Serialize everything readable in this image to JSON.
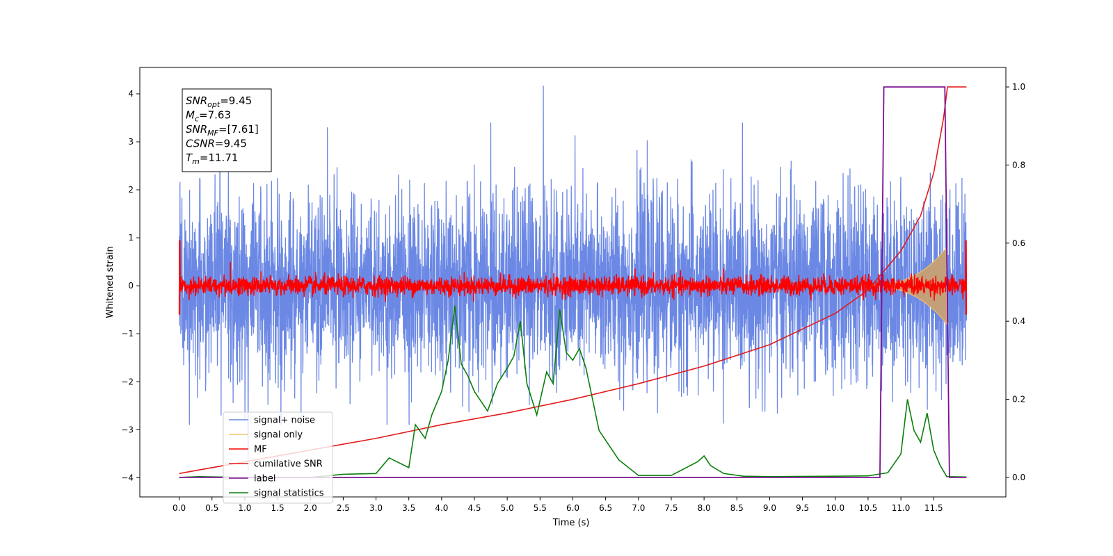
{
  "chart_data": {
    "type": "line",
    "xlabel": "Time (s)",
    "ylabel": "Whitened strain",
    "xlim": [
      -0.6,
      12.6
    ],
    "ylim": [
      -4.4,
      4.55
    ],
    "y2lim": [
      -0.05,
      1.05
    ],
    "xticks": [
      "0.0",
      "0.5",
      "1.0",
      "1.5",
      "2.0",
      "2.5",
      "3.0",
      "3.5",
      "4.0",
      "4.5",
      "5.0",
      "5.5",
      "6.0",
      "6.5",
      "7.0",
      "7.5",
      "8.0",
      "8.5",
      "9.0",
      "9.5",
      "10.0",
      "10.5",
      "11.0",
      "11.5"
    ],
    "yticks": [
      "−4",
      "−3",
      "−2",
      "−1",
      "0",
      "1",
      "2",
      "3",
      "4"
    ],
    "y2ticks": [
      "0.0",
      "0.2",
      "0.4",
      "0.6",
      "0.8",
      "1.0"
    ],
    "colors": {
      "signal_noise": "#6b88e4",
      "signal_only": "#f5c26b",
      "signal_fill": "#c4a07a",
      "mf": "#ff0000",
      "csnr": "#e41a1a",
      "label": "#7b0f8f",
      "statistics": "#0a7f0a"
    },
    "annotation": {
      "lines": [
        {
          "name": "SNR",
          "sub": "opt",
          "value": "=9.45"
        },
        {
          "name": "M",
          "sub": "c",
          "value": "=7.63"
        },
        {
          "name": "SNR",
          "sub": "MF",
          "value": "=[7.61]"
        },
        {
          "name": "CSNR",
          "sub": "",
          "value": "=9.45"
        },
        {
          "name": "T",
          "sub": "m",
          "value": "=11.71"
        }
      ]
    },
    "legend": {
      "placement": "lower-left",
      "entries": [
        {
          "label": "signal+ noise",
          "color": "#6b88e4"
        },
        {
          "label": "signal only",
          "color": "#f5c26b"
        },
        {
          "label": "MF",
          "color": "#ff0000"
        },
        {
          "label": "cumilative SNR",
          "color": "#e41a1a"
        },
        {
          "label": "label",
          "color": "#7b0f8f"
        },
        {
          "label": "signal statistics",
          "color": "#0a7f0a"
        }
      ]
    },
    "series": [
      {
        "name": "signal+ noise",
        "axis": "left",
        "t_range": [
          0,
          12
        ],
        "envelope": "random noise between about −2.4 and 2.6, spikes to 4.17 near t=5.55 and −3.85 near t=1.05"
      },
      {
        "name": "signal only",
        "axis": "left",
        "t_range": [
          10.3,
          11.7
        ],
        "chirp_peak_amplitude": 0.8
      },
      {
        "name": "MF",
        "axis": "left",
        "t_range": [
          0,
          12
        ],
        "baseline": 0,
        "noise_amplitude": 0.2
      },
      {
        "name": "cumilative SNR",
        "axis": "right",
        "x": [
          0.0,
          1.0,
          2.0,
          3.0,
          4.0,
          5.0,
          6.0,
          7.0,
          8.0,
          9.0,
          10.0,
          10.5,
          11.0,
          11.3,
          11.5,
          11.65,
          11.71,
          11.72,
          12.0
        ],
        "y": [
          0.01,
          0.04,
          0.07,
          0.1,
          0.135,
          0.165,
          0.2,
          0.24,
          0.285,
          0.34,
          0.42,
          0.48,
          0.58,
          0.67,
          0.78,
          0.92,
          1.0,
          1.0,
          1.0
        ]
      },
      {
        "name": "label",
        "axis": "right",
        "x": [
          0.0,
          10.68,
          10.74,
          11.67,
          11.74,
          12.0
        ],
        "y": [
          0.0,
          0.0,
          1.0,
          1.0,
          0.0,
          0.0
        ]
      },
      {
        "name": "signal statistics",
        "axis": "right",
        "x": [
          0.0,
          0.3,
          1.0,
          2.0,
          2.5,
          3.0,
          3.2,
          3.5,
          3.6,
          3.75,
          3.85,
          4.0,
          4.1,
          4.2,
          4.3,
          4.4,
          4.5,
          4.7,
          4.85,
          5.0,
          5.1,
          5.2,
          5.3,
          5.45,
          5.6,
          5.7,
          5.8,
          5.9,
          6.0,
          6.1,
          6.2,
          6.4,
          6.7,
          7.0,
          7.5,
          7.9,
          8.0,
          8.1,
          8.3,
          8.6,
          9.0,
          10.0,
          10.5,
          10.8,
          11.0,
          11.1,
          11.2,
          11.3,
          11.4,
          11.5,
          11.6,
          11.7,
          12.0
        ],
        "y": [
          0.0,
          0.002,
          0.0,
          0.0,
          0.008,
          0.01,
          0.05,
          0.025,
          0.135,
          0.1,
          0.16,
          0.22,
          0.3,
          0.44,
          0.29,
          0.26,
          0.22,
          0.17,
          0.24,
          0.28,
          0.31,
          0.4,
          0.24,
          0.16,
          0.27,
          0.24,
          0.43,
          0.32,
          0.3,
          0.33,
          0.28,
          0.12,
          0.045,
          0.005,
          0.005,
          0.04,
          0.055,
          0.03,
          0.01,
          0.003,
          0.002,
          0.003,
          0.004,
          0.012,
          0.06,
          0.2,
          0.12,
          0.09,
          0.165,
          0.07,
          0.03,
          0.002,
          0.001
        ]
      }
    ]
  }
}
